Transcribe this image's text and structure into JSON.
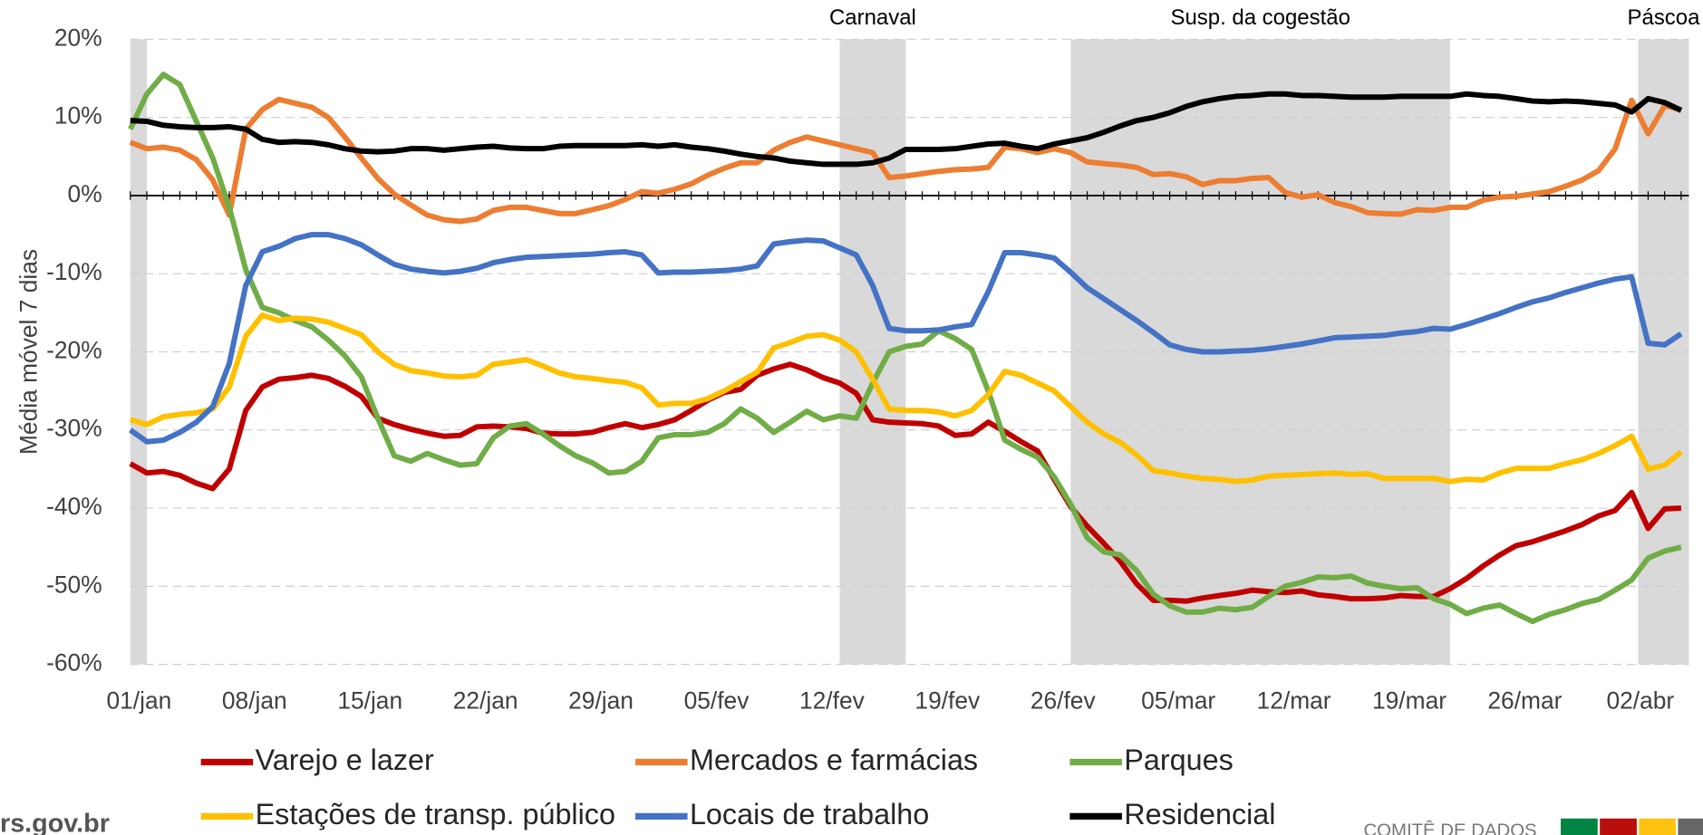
{
  "chart_data": {
    "type": "line",
    "y_label": "Média móvel 7 dias",
    "categories": [
      "01/jan",
      null,
      null,
      null,
      null,
      null,
      null,
      "08/jan",
      null,
      null,
      null,
      null,
      null,
      null,
      "15/jan",
      null,
      null,
      null,
      null,
      null,
      null,
      "22/jan",
      null,
      null,
      null,
      null,
      null,
      null,
      "29/jan",
      null,
      null,
      null,
      null,
      null,
      null,
      "05/fev",
      null,
      null,
      null,
      null,
      null,
      null,
      "12/fev",
      null,
      null,
      null,
      null,
      null,
      null,
      "19/fev",
      null,
      null,
      null,
      null,
      null,
      null,
      "26/fev",
      null,
      null,
      null,
      null,
      null,
      null,
      "05/mar",
      null,
      null,
      null,
      null,
      null,
      null,
      "12/mar",
      null,
      null,
      null,
      null,
      null,
      null,
      "19/mar",
      null,
      null,
      null,
      null,
      null,
      null,
      "26/mar",
      null,
      null,
      null,
      null,
      null,
      null,
      "02/abr",
      null,
      null,
      null
    ],
    "ylim": [
      -60,
      20
    ],
    "yticks": [
      {
        "value": -60,
        "label": "-60%"
      },
      {
        "value": -50,
        "label": "-50%"
      },
      {
        "value": -40,
        "label": "-40%"
      },
      {
        "value": -30,
        "label": "-30%"
      },
      {
        "value": -20,
        "label": "-20%"
      },
      {
        "value": -10,
        "label": "-10%"
      },
      {
        "value": 0,
        "label": "0%"
      },
      {
        "value": 10,
        "label": "10%"
      },
      {
        "value": 20,
        "label": "20%"
      }
    ],
    "grid": true,
    "bands": [
      {
        "start": 0,
        "end": 1
      },
      {
        "label": "Carnaval",
        "start": 43,
        "end": 47
      },
      {
        "label": "Susp. da cogestão",
        "start": 57,
        "end": 80
      },
      {
        "label": "Páscoa",
        "start": 91.4,
        "end": 94.5
      }
    ],
    "series": [
      {
        "name": "Varejo e lazer",
        "color": "#c00000",
        "values": [
          -34.3,
          -35.5,
          -35.3,
          -35.8,
          -36.8,
          -37.5,
          -35,
          -27.5,
          -24.5,
          -23.5,
          -23.3,
          -23,
          -23.4,
          -24.4,
          -25.7,
          -28.5,
          -29.3,
          -29.9,
          -30.4,
          -30.8,
          -30.7,
          -29.6,
          -29.5,
          -29.6,
          -29.8,
          -30.4,
          -30.5,
          -30.5,
          -30.3,
          -29.7,
          -29.2,
          -29.7,
          -29.3,
          -28.7,
          -27.5,
          -26.2,
          -25.2,
          -24.8,
          -23,
          -22.2,
          -21.6,
          -22.3,
          -23.3,
          -24,
          -25.3,
          -28.7,
          -29,
          -29.1,
          -29.2,
          -29.5,
          -30.7,
          -30.5,
          -29,
          -30.2,
          -31.5,
          -32.7,
          -36.3,
          -39.8,
          -42.3,
          -44.5,
          -46.8,
          -49.7,
          -51.8,
          -51.8,
          -51.9,
          -51.5,
          -51.2,
          -50.9,
          -50.5,
          -50.7,
          -50.8,
          -50.6,
          -51.1,
          -51.3,
          -51.6,
          -51.6,
          -51.5,
          -51.2,
          -51.3,
          -51.3,
          -50.3,
          -49,
          -47.4,
          -46,
          -44.8,
          -44.3,
          -43.6,
          -42.9,
          -42.1,
          -41,
          -40.3,
          -38,
          -42.6,
          -40.1,
          -40
        ]
      },
      {
        "name": "Mercados e farmácias",
        "color": "#ed7d31",
        "values": [
          6.8,
          6,
          6.2,
          5.8,
          4.6,
          2,
          -2.5,
          8.5,
          11,
          12.3,
          11.8,
          11.3,
          10,
          7.5,
          4.8,
          2.2,
          0.2,
          -1.2,
          -2.5,
          -3.1,
          -3.3,
          -3,
          -1.9,
          -1.5,
          -1.5,
          -1.9,
          -2.3,
          -2.3,
          -1.8,
          -1.3,
          -0.5,
          0.5,
          0.3,
          0.8,
          1.5,
          2.6,
          3.5,
          4.2,
          4.2,
          5.8,
          6.8,
          7.5,
          7,
          6.5,
          6,
          5.5,
          2.3,
          2.5,
          2.8,
          3.1,
          3.3,
          3.4,
          3.6,
          6.2,
          6,
          5.5,
          6,
          5.5,
          4.3,
          4.1,
          3.9,
          3.6,
          2.7,
          2.8,
          2.4,
          1.4,
          1.9,
          1.9,
          2.2,
          2.3,
          0.4,
          -0.2,
          0.1,
          -0.9,
          -1.4,
          -2.2,
          -2.3,
          -2.4,
          -1.8,
          -1.9,
          -1.5,
          -1.5,
          -0.6,
          -0.2,
          -0.1,
          0.2,
          0.5,
          1.2,
          2,
          3.2,
          6,
          12.2,
          7.9,
          11.5,
          11
        ]
      },
      {
        "name": "Parques",
        "color": "#70ad47",
        "values": [
          8.5,
          13,
          15.5,
          14.2,
          9.5,
          4.8,
          -1.5,
          -9.5,
          -14.3,
          -15,
          -16,
          -16.8,
          -18.5,
          -20.5,
          -23.2,
          -28.5,
          -33.3,
          -34,
          -33,
          -33.8,
          -34.5,
          -34.3,
          -31,
          -29.5,
          -29.2,
          -30.5,
          -32,
          -33.3,
          -34.2,
          -35.5,
          -35.3,
          -34,
          -31,
          -30.6,
          -30.6,
          -30.3,
          -29.2,
          -27.3,
          -28.5,
          -30.3,
          -29,
          -27.6,
          -28.7,
          -28.2,
          -28.5,
          -24,
          -20,
          -19.3,
          -19,
          -17.3,
          -18.3,
          -19.7,
          -25,
          -31.3,
          -32.5,
          -33.5,
          -36,
          -39.5,
          -43.8,
          -45.6,
          -46,
          -48,
          -51,
          -52.5,
          -53.3,
          -53.3,
          -52.8,
          -53,
          -52.7,
          -51.3,
          -50,
          -49.5,
          -48.8,
          -48.9,
          -48.7,
          -49.6,
          -50,
          -50.3,
          -50.2,
          -51.6,
          -52.3,
          -53.5,
          -52.8,
          -52.4,
          -53.5,
          -54.5,
          -53.6,
          -53,
          -52.2,
          -51.7,
          -50.5,
          -49.2,
          -46.4,
          -45.5,
          -45
        ]
      },
      {
        "name": "Estações de transp. público",
        "color": "#ffc000",
        "values": [
          -28.7,
          -29.3,
          -28.3,
          -28,
          -27.8,
          -27.3,
          -24.5,
          -18,
          -15.3,
          -16,
          -15.7,
          -15.8,
          -16.2,
          -17,
          -17.8,
          -20,
          -21.6,
          -22.4,
          -22.7,
          -23.1,
          -23.2,
          -23,
          -21.6,
          -21.3,
          -21,
          -21.8,
          -22.7,
          -23.2,
          -23.4,
          -23.7,
          -23.9,
          -24.6,
          -26.8,
          -26.6,
          -26.6,
          -26,
          -25,
          -23.8,
          -22.6,
          -19.5,
          -18.8,
          -18,
          -17.8,
          -18.5,
          -20,
          -23.5,
          -27.3,
          -27.5,
          -27.5,
          -27.7,
          -28.2,
          -27.5,
          -25.5,
          -22.5,
          -23,
          -24,
          -25,
          -27,
          -29,
          -30.5,
          -31.6,
          -33.2,
          -35.2,
          -35.5,
          -35.9,
          -36.2,
          -36.3,
          -36.6,
          -36.4,
          -35.9,
          -35.8,
          -35.7,
          -35.6,
          -35.5,
          -35.7,
          -35.6,
          -36.2,
          -36.2,
          -36.2,
          -36.2,
          -36.6,
          -36.3,
          -36.4,
          -35.5,
          -34.9,
          -34.9,
          -34.9,
          -34.3,
          -33.8,
          -33,
          -32,
          -30.8,
          -35,
          -34.5,
          -32.8
        ]
      },
      {
        "name": "Locais de trabalho",
        "color": "#4472c4",
        "values": [
          -30,
          -31.5,
          -31.3,
          -30.3,
          -29,
          -27,
          -21.5,
          -11.5,
          -7.2,
          -6.5,
          -5.5,
          -5,
          -5,
          -5.5,
          -6.3,
          -7.6,
          -8.8,
          -9.4,
          -9.7,
          -9.9,
          -9.7,
          -9.3,
          -8.6,
          -8.2,
          -7.9,
          -7.8,
          -7.7,
          -7.6,
          -7.5,
          -7.3,
          -7.2,
          -7.6,
          -9.9,
          -9.8,
          -9.8,
          -9.7,
          -9.6,
          -9.4,
          -9,
          -6.2,
          -5.9,
          -5.7,
          -5.8,
          -6.7,
          -7.6,
          -11.5,
          -17,
          -17.3,
          -17.3,
          -17.2,
          -16.8,
          -16.5,
          -12.3,
          -7.3,
          -7.3,
          -7.6,
          -8,
          -9.8,
          -11.8,
          -13.2,
          -14.6,
          -16,
          -17.5,
          -19.1,
          -19.7,
          -20,
          -20,
          -19.9,
          -19.8,
          -19.6,
          -19.3,
          -19,
          -18.6,
          -18.2,
          -18.1,
          -18,
          -17.9,
          -17.6,
          -17.4,
          -17,
          -17.1,
          -16.5,
          -15.8,
          -15.1,
          -14.3,
          -13.6,
          -13.1,
          -12.4,
          -11.8,
          -11.2,
          -10.7,
          -10.4,
          -18.9,
          -19.1,
          -17.7
        ]
      },
      {
        "name": "Residencial",
        "color": "#000000",
        "values": [
          9.6,
          9.5,
          9,
          8.8,
          8.7,
          8.7,
          8.8,
          8.5,
          7.2,
          6.8,
          6.9,
          6.8,
          6.5,
          6,
          5.7,
          5.6,
          5.7,
          6,
          6,
          5.8,
          6,
          6.2,
          6.3,
          6.1,
          6,
          6,
          6.3,
          6.4,
          6.4,
          6.4,
          6.4,
          6.5,
          6.3,
          6.5,
          6.2,
          6,
          5.7,
          5.3,
          5,
          4.8,
          4.4,
          4.2,
          4,
          4,
          4,
          4.2,
          4.8,
          5.9,
          5.9,
          5.9,
          6,
          6.3,
          6.6,
          6.7,
          6.3,
          6,
          6.6,
          7,
          7.4,
          8.1,
          8.9,
          9.6,
          10,
          10.6,
          11.4,
          12,
          12.4,
          12.7,
          12.8,
          13,
          13,
          12.8,
          12.8,
          12.7,
          12.6,
          12.6,
          12.6,
          12.7,
          12.7,
          12.7,
          12.7,
          13,
          12.8,
          12.7,
          12.4,
          12.1,
          12,
          12.1,
          12,
          11.8,
          11.6,
          10.7,
          12.4,
          11.9,
          10.9
        ]
      }
    ]
  },
  "footer": {
    "site": "rs.gov.br",
    "org": "COMITÊ DE DADOS"
  }
}
